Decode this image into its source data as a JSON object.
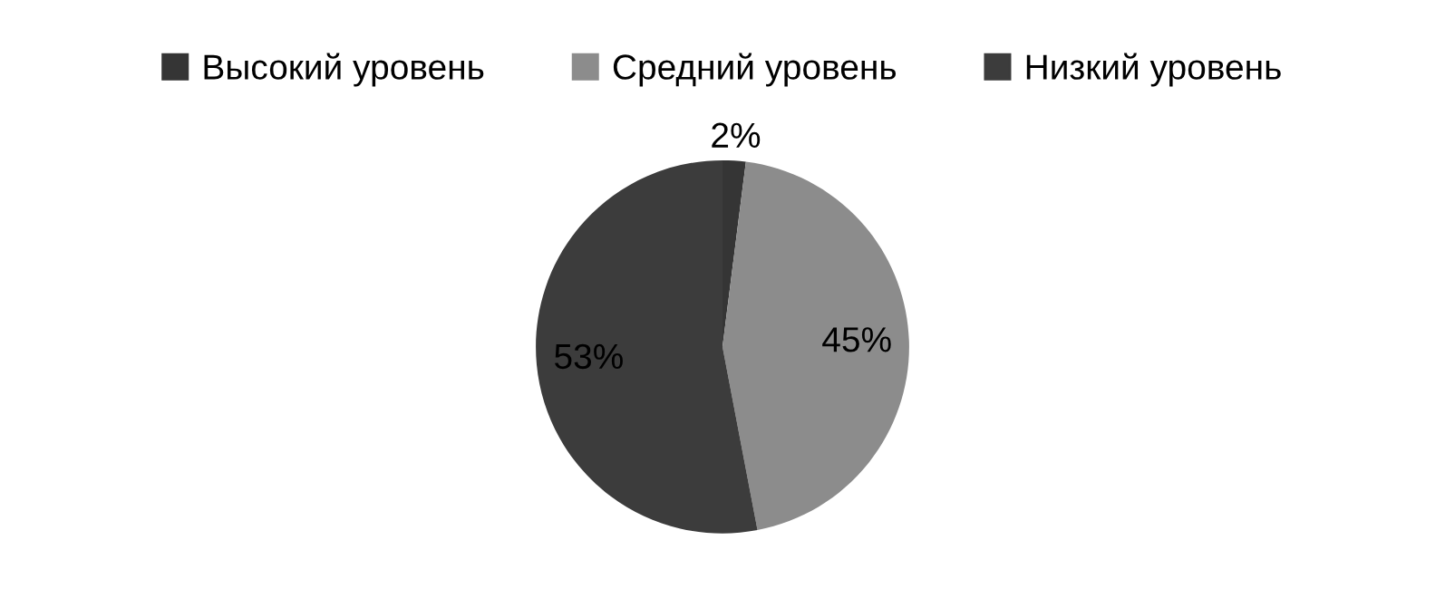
{
  "chart_data": {
    "type": "pie",
    "categories": [
      "Высокий уровень",
      "Средний уровень",
      "Низкий уровень"
    ],
    "values": [
      2,
      45,
      53
    ],
    "colors": [
      "#353535",
      "#8c8c8c",
      "#3c3c3c"
    ],
    "value_labels": [
      "2%",
      "45%",
      "53%"
    ],
    "legend": "top"
  }
}
